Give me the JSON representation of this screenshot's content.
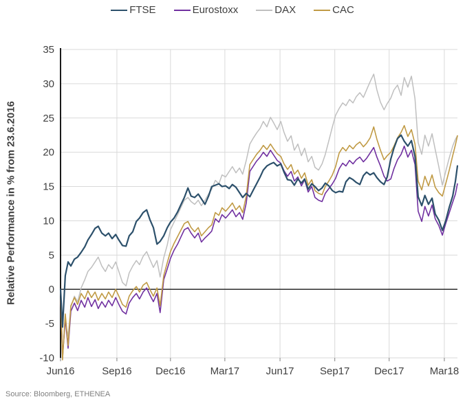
{
  "source": {
    "text": "Source: Bloomberg, ETHENEA"
  },
  "colors": {
    "grid": "#d9d9d9",
    "axis": "#1a1a1a",
    "zero_line": "#1a1a1a",
    "tick_text": "#404040",
    "source_text": "#7f7f7f"
  },
  "chart_data": {
    "type": "line",
    "title": "",
    "xlabel": "",
    "ylabel": "Relative Performance in % from 23.6.2016",
    "ylim": [
      -10,
      35
    ],
    "y_ticks": [
      35,
      30,
      25,
      20,
      15,
      10,
      5,
      0,
      -5,
      -10
    ],
    "grid": "both",
    "legend_position": "top-center",
    "x_ticks": [
      {
        "label": "Jun16",
        "t": 0.0
      },
      {
        "label": "Sep16",
        "t": 0.142
      },
      {
        "label": "Dec16",
        "t": 0.277
      },
      {
        "label": "Mar17",
        "t": 0.414
      },
      {
        "label": "Jun17",
        "t": 0.553
      },
      {
        "label": "Sep17",
        "t": 0.691
      },
      {
        "label": "Dec17",
        "t": 0.828
      },
      {
        "label": "Mar18",
        "t": 0.967
      }
    ],
    "x": [
      0.0,
      0.005,
      0.012,
      0.019,
      0.026,
      0.035,
      0.043,
      0.052,
      0.061,
      0.069,
      0.078,
      0.087,
      0.095,
      0.104,
      0.113,
      0.121,
      0.13,
      0.139,
      0.147,
      0.156,
      0.165,
      0.173,
      0.182,
      0.191,
      0.199,
      0.208,
      0.217,
      0.225,
      0.234,
      0.243,
      0.251,
      0.26,
      0.269,
      0.277,
      0.286,
      0.295,
      0.303,
      0.312,
      0.321,
      0.329,
      0.338,
      0.347,
      0.355,
      0.364,
      0.373,
      0.381,
      0.39,
      0.399,
      0.407,
      0.416,
      0.425,
      0.433,
      0.442,
      0.451,
      0.459,
      0.468,
      0.477,
      0.485,
      0.494,
      0.503,
      0.511,
      0.52,
      0.529,
      0.537,
      0.546,
      0.555,
      0.563,
      0.572,
      0.581,
      0.589,
      0.598,
      0.607,
      0.615,
      0.624,
      0.633,
      0.641,
      0.65,
      0.659,
      0.667,
      0.676,
      0.685,
      0.693,
      0.702,
      0.711,
      0.719,
      0.728,
      0.737,
      0.745,
      0.754,
      0.763,
      0.771,
      0.78,
      0.789,
      0.797,
      0.806,
      0.815,
      0.823,
      0.832,
      0.84,
      0.849,
      0.858,
      0.866,
      0.875,
      0.884,
      0.893,
      0.901,
      0.91,
      0.918,
      0.927,
      0.936,
      0.944,
      0.953,
      0.962,
      0.97,
      0.979,
      0.988,
      0.995,
      1.0
    ],
    "series": [
      {
        "name": "FTSE",
        "color": "#2c506b",
        "width": 2.2,
        "values": [
          0,
          -5.5,
          2.0,
          4.0,
          3.4,
          4.4,
          4.7,
          5.4,
          6.2,
          7.2,
          8.0,
          8.9,
          9.2,
          8.2,
          7.8,
          8.2,
          7.4,
          8.0,
          7.2,
          6.4,
          6.3,
          7.8,
          8.4,
          9.9,
          10.4,
          11.2,
          11.6,
          10.2,
          9.0,
          6.6,
          7.0,
          7.8,
          9.0,
          9.8,
          10.4,
          11.3,
          12.3,
          13.4,
          14.8,
          13.6,
          13.4,
          13.9,
          13.2,
          12.4,
          13.6,
          15.0,
          15.2,
          15.4,
          15.0,
          15.1,
          14.7,
          15.3,
          14.9,
          14.1,
          13.4,
          14.0,
          13.5,
          14.4,
          15.4,
          16.4,
          17.4,
          18.0,
          18.3,
          18.5,
          18.0,
          18.3,
          17.1,
          16.0,
          15.9,
          15.2,
          16.1,
          15.5,
          16.1,
          14.6,
          15.4,
          15.0,
          14.4,
          14.8,
          15.5,
          15.1,
          14.4,
          14.1,
          14.3,
          14.2,
          15.7,
          16.3,
          16.0,
          15.6,
          15.3,
          16.6,
          17.1,
          16.7,
          17.0,
          16.3,
          15.7,
          15.3,
          16.4,
          19.0,
          20.6,
          22.0,
          22.5,
          21.6,
          20.9,
          21.7,
          19.4,
          13.5,
          12.2,
          13.7,
          12.4,
          13.3,
          11.0,
          10.1,
          8.6,
          9.9,
          11.9,
          13.6,
          15.8,
          18.0
        ]
      },
      {
        "name": "Eurostoxx",
        "color": "#7030a0",
        "width": 1.6,
        "values": [
          0,
          -10,
          -4.2,
          -8.6,
          -3.2,
          -2.0,
          -3.1,
          -1.6,
          -2.6,
          -1.2,
          -2.5,
          -1.5,
          -2.8,
          -1.8,
          -2.6,
          -1.6,
          -2.4,
          -1.2,
          -2.2,
          -3.2,
          -3.6,
          -2.0,
          -1.2,
          -0.6,
          -1.4,
          -0.4,
          0.2,
          -0.8,
          -1.8,
          -0.6,
          -3.4,
          1.4,
          3.0,
          4.5,
          5.7,
          6.6,
          7.6,
          8.7,
          9.0,
          8.2,
          7.5,
          8.2,
          6.9,
          7.5,
          8.0,
          8.5,
          10.3,
          9.8,
          10.9,
          10.4,
          11.0,
          11.6,
          10.6,
          11.2,
          10.2,
          12.6,
          17.2,
          17.9,
          18.7,
          19.3,
          20.0,
          19.4,
          20.3,
          19.6,
          18.8,
          18.4,
          17.3,
          16.5,
          17.2,
          15.8,
          16.4,
          15.1,
          16.0,
          14.2,
          15.0,
          13.4,
          13.0,
          12.8,
          14.0,
          14.7,
          15.4,
          16.2,
          17.6,
          18.4,
          18.0,
          18.8,
          18.3,
          18.9,
          19.3,
          18.6,
          19.1,
          19.9,
          20.7,
          19.3,
          18.0,
          16.5,
          15.8,
          16.1,
          17.6,
          18.9,
          19.7,
          20.9,
          19.3,
          20.3,
          18.2,
          11.4,
          9.9,
          12.1,
          10.7,
          12.3,
          10.3,
          9.3,
          7.9,
          9.5,
          11.1,
          12.7,
          13.9,
          15.4
        ]
      },
      {
        "name": "DAX",
        "color": "#bfbfbf",
        "width": 1.5,
        "values": [
          0,
          -9.7,
          -4.8,
          -6.8,
          -2.6,
          -1.0,
          -1.8,
          0.2,
          1.4,
          2.6,
          3.2,
          4.0,
          4.7,
          3.4,
          2.6,
          3.6,
          3.0,
          4.0,
          2.6,
          1.0,
          0.5,
          2.4,
          3.4,
          4.2,
          3.6,
          4.8,
          5.5,
          4.4,
          3.2,
          4.2,
          1.8,
          4.6,
          6.5,
          8.7,
          9.8,
          10.9,
          11.9,
          13.0,
          13.4,
          12.8,
          12.4,
          13.0,
          12.2,
          13.0,
          13.9,
          14.6,
          15.9,
          15.4,
          16.7,
          16.4,
          17.2,
          17.9,
          17.0,
          17.7,
          16.8,
          18.8,
          21.2,
          22.0,
          22.8,
          23.5,
          24.5,
          23.7,
          25.1,
          24.3,
          23.3,
          24.5,
          22.9,
          21.6,
          22.4,
          20.3,
          21.2,
          19.5,
          20.6,
          18.6,
          19.4,
          17.8,
          17.4,
          18.3,
          19.7,
          21.7,
          23.7,
          25.4,
          26.4,
          27.2,
          26.8,
          27.7,
          27.2,
          28.1,
          28.7,
          28.0,
          29.1,
          30.3,
          31.4,
          29.1,
          27.3,
          26.2,
          27.1,
          27.9,
          29.1,
          29.8,
          28.3,
          30.9,
          29.5,
          31.1,
          27.8,
          21.4,
          19.7,
          22.5,
          20.9,
          22.7,
          20.4,
          17.9,
          15.2,
          17.1,
          19.1,
          20.9,
          21.9,
          22.4
        ]
      },
      {
        "name": "CAC",
        "color": "#c09a44",
        "width": 1.6,
        "values": [
          0,
          -10.3,
          -3.6,
          -8.2,
          -2.4,
          -1.2,
          -2.2,
          -0.6,
          -1.4,
          -0.2,
          -1.2,
          -0.4,
          -1.6,
          -0.6,
          -1.4,
          -0.4,
          -1.2,
          0.0,
          -1.0,
          -2.2,
          -2.6,
          -1.0,
          -0.2,
          0.4,
          -0.4,
          0.6,
          1.0,
          0.0,
          -1.0,
          0.2,
          -2.4,
          2.0,
          3.9,
          5.5,
          6.7,
          7.7,
          8.6,
          9.6,
          9.9,
          9.0,
          8.4,
          9.0,
          7.8,
          8.4,
          9.0,
          9.4,
          11.2,
          10.8,
          11.9,
          11.4,
          12.0,
          12.6,
          11.6,
          12.2,
          11.2,
          13.6,
          18.2,
          18.9,
          19.7,
          20.3,
          21.0,
          20.4,
          21.2,
          20.5,
          19.8,
          19.4,
          18.3,
          17.5,
          18.2,
          16.8,
          17.4,
          16.2,
          17.0,
          15.2,
          16.0,
          14.4,
          14.0,
          13.8,
          15.0,
          15.8,
          16.7,
          17.9,
          19.9,
          20.7,
          20.2,
          21.0,
          20.5,
          21.1,
          21.5,
          20.8,
          21.3,
          22.1,
          23.7,
          21.9,
          20.3,
          18.9,
          19.5,
          20.0,
          20.9,
          22.1,
          22.9,
          23.9,
          22.3,
          23.3,
          21.2,
          15.8,
          14.5,
          16.5,
          15.1,
          16.7,
          14.9,
          14.1,
          13.6,
          15.3,
          17.3,
          19.5,
          21.1,
          22.4
        ]
      }
    ]
  }
}
